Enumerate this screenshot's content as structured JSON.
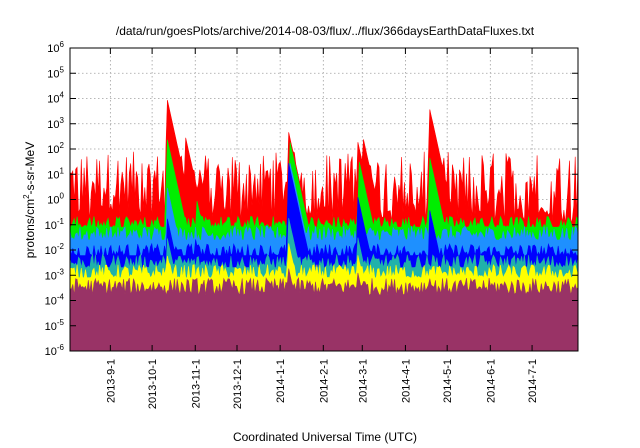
{
  "chart_data": {
    "type": "area",
    "title": "/data/run/goesPlots/archive/2014-08-03/flux/../flux/366daysEarthDataFluxes.txt",
    "xlabel": "Coordinated Universal Time (UTC)",
    "ylabel": "protons/cm2-s-sr-MeV",
    "ylabel_parts": {
      "base": "protons/cm",
      "sup": "2",
      "rest": "-s-sr-MeV"
    },
    "x_range": [
      "2013-08-03",
      "2014-08-03"
    ],
    "x_ticks": [
      "2013-9-1",
      "2013-10-1",
      "2013-11-1",
      "2013-12-1",
      "2014-1-1",
      "2014-2-1",
      "2014-3-1",
      "2014-4-1",
      "2014-5-1",
      "2014-6-1",
      "2014-7-1"
    ],
    "y_scale": "log",
    "y_range": [
      1e-06,
      1000000.0
    ],
    "y_ticks": [
      {
        "base": "10",
        "exp": "-6"
      },
      {
        "base": "10",
        "exp": "-5"
      },
      {
        "base": "10",
        "exp": "-4"
      },
      {
        "base": "10",
        "exp": "-3"
      },
      {
        "base": "10",
        "exp": "-2"
      },
      {
        "base": "10",
        "exp": "-1"
      },
      {
        "base": "10",
        "exp": "0"
      },
      {
        "base": "10",
        "exp": "1"
      },
      {
        "base": "10",
        "exp": "2"
      },
      {
        "base": "10",
        "exp": "3"
      },
      {
        "base": "10",
        "exp": "4"
      },
      {
        "base": "10",
        "exp": "5"
      },
      {
        "base": "10",
        "exp": "6"
      }
    ],
    "grid": true,
    "legend": "none",
    "series": [
      {
        "color": "#ff0000",
        "baseline": 5,
        "low": 0.1,
        "peaks": [
          [
            "2013-10-11",
            15000
          ],
          [
            "2013-10-25",
            300
          ],
          [
            "2014-01-07",
            500
          ],
          [
            "2014-02-25",
            300
          ],
          [
            "2014-04-18",
            5000
          ],
          [
            "2014-03-01",
            400
          ]
        ]
      },
      {
        "color": "#00ee00",
        "baseline": 0.1,
        "low": 0.08,
        "peaks": [
          [
            "2013-10-11",
            400
          ],
          [
            "2014-01-08",
            200
          ],
          [
            "2014-02-26",
            50
          ],
          [
            "2014-04-18",
            60
          ],
          [
            "2013-11-02",
            1
          ]
        ]
      },
      {
        "color": "#1e90ff",
        "baseline": 0.04,
        "low": 0.025,
        "peaks": [
          [
            "2013-10-11",
            5
          ],
          [
            "2014-01-08",
            30
          ],
          [
            "2014-02-26",
            1
          ],
          [
            "2014-04-18",
            0.5
          ]
        ]
      },
      {
        "color": "#0000ff",
        "baseline": 0.008,
        "low": 0.006,
        "peaks": [
          [
            "2013-10-11",
            0.3
          ],
          [
            "2014-01-07",
            30
          ],
          [
            "2014-02-25",
            2
          ],
          [
            "2014-04-18",
            0.5
          ],
          [
            "2013-11-01",
            0.03
          ]
        ]
      },
      {
        "color": "#20b2aa",
        "baseline": 0.003,
        "low": 0.002,
        "peaks": [
          [
            "2013-10-11",
            0.05
          ],
          [
            "2014-01-07",
            0.2
          ],
          [
            "2014-02-25",
            0.05
          ]
        ]
      },
      {
        "color": "#ffff00",
        "baseline": 0.0012,
        "low": 0.0008,
        "peaks": [
          [
            "2013-10-11",
            0.01
          ],
          [
            "2014-01-07",
            0.02
          ],
          [
            "2014-02-25",
            0.01
          ]
        ]
      },
      {
        "color": "#993366",
        "baseline": 0.00035,
        "low": 5e-05,
        "peaks": [
          [
            "2014-01-07",
            0.002
          ],
          [
            "2014-02-25",
            0.002
          ],
          [
            "2014-04-18",
            0.001
          ]
        ]
      }
    ]
  }
}
